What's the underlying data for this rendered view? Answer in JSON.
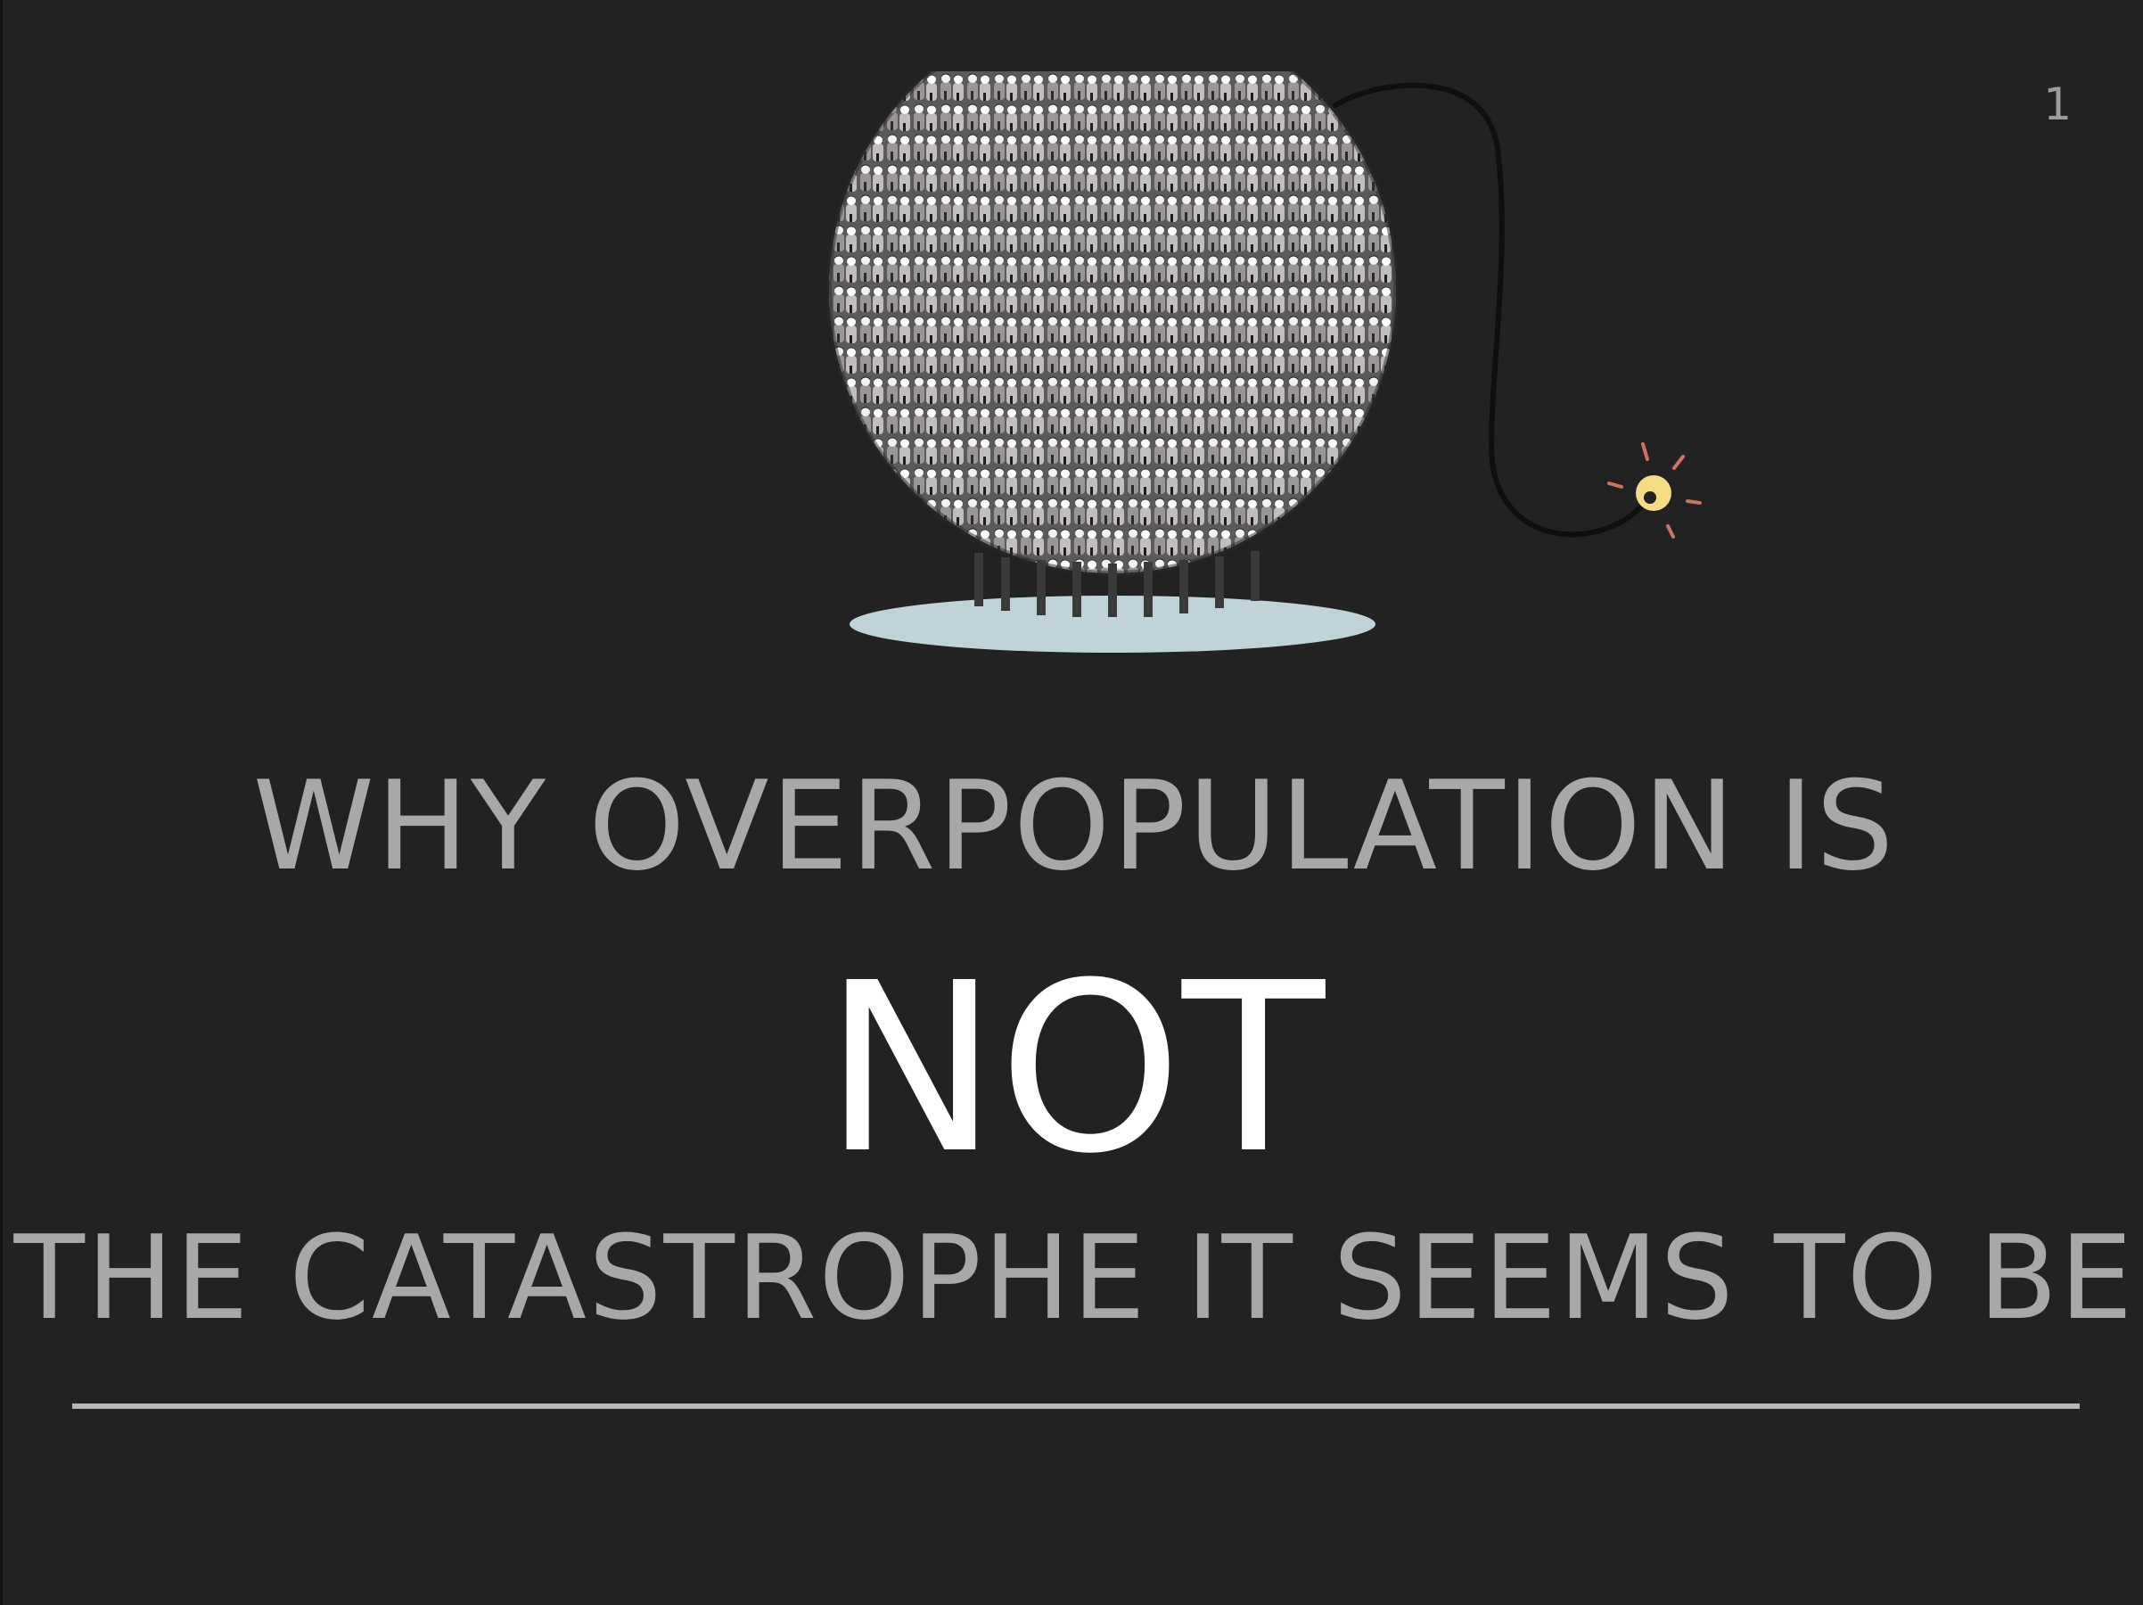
{
  "slide": {
    "number": "1",
    "title_line_1": "WHY OVERPOPULATION IS",
    "title_emphasis": "NOT",
    "title_line_3": "THE CATASTROPHE IT SEEMS TO BE"
  },
  "illustration": {
    "name": "crowd-bomb-illustration",
    "parts": [
      "crowd-sphere",
      "fuse",
      "spark",
      "ground-shadow"
    ]
  },
  "colors": {
    "background": "#222222",
    "title_grey": "#a8a8a8",
    "emphasis_white": "#ffffff",
    "rule_grey": "#b6b6b6",
    "shadow_blue": "#bfd3d8",
    "spark_yellow": "#f3dc84",
    "spark_rays": "#d0735c"
  }
}
